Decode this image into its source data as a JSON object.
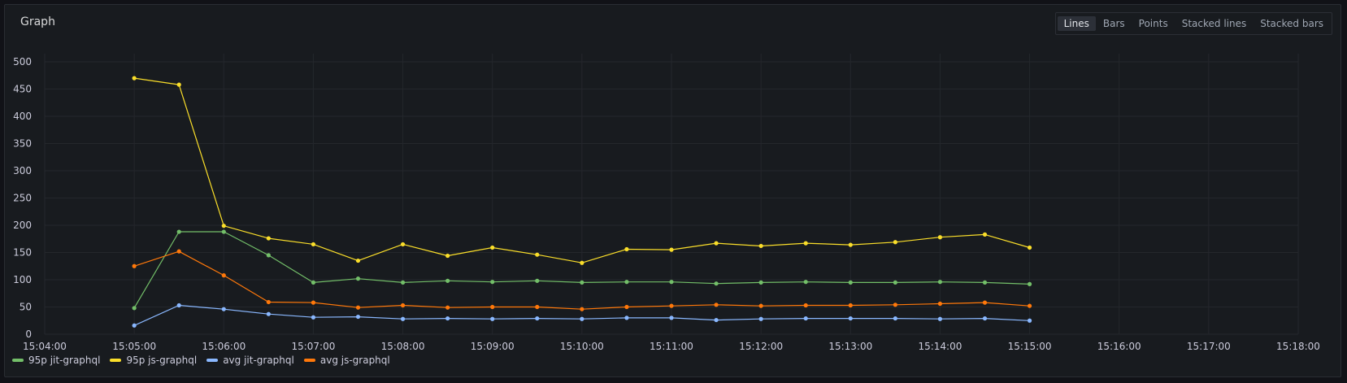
{
  "panel": {
    "title": "Graph",
    "view_modes": [
      "Lines",
      "Bars",
      "Points",
      "Stacked lines",
      "Stacked bars"
    ],
    "active_view": "Lines"
  },
  "colors": {
    "95p jit-graphql": "#73bf69",
    "95p js-graphql": "#fade2a",
    "avg jit-graphql": "#8ab8ff",
    "avg js-graphql": "#ff780a"
  },
  "chart_data": {
    "type": "line",
    "title": "Graph",
    "xlabel": "",
    "ylabel": "",
    "ylim": [
      0,
      500
    ],
    "yticks": [
      0,
      50,
      100,
      150,
      200,
      250,
      300,
      350,
      400,
      450,
      500
    ],
    "xticks": [
      "15:04:00",
      "15:05:00",
      "15:06:00",
      "15:07:00",
      "15:08:00",
      "15:09:00",
      "15:10:00",
      "15:11:00",
      "15:12:00",
      "15:13:00",
      "15:14:00",
      "15:15:00",
      "15:16:00",
      "15:17:00",
      "15:18:00"
    ],
    "xlim": [
      "15:04:00",
      "15:18:00"
    ],
    "grid": true,
    "legend_position": "bottom-left",
    "x": [
      "15:05:00",
      "15:05:30",
      "15:06:00",
      "15:06:30",
      "15:07:00",
      "15:07:30",
      "15:08:00",
      "15:08:30",
      "15:09:00",
      "15:09:30",
      "15:10:00",
      "15:10:30",
      "15:11:00",
      "15:11:30",
      "15:12:00",
      "15:12:30",
      "15:13:00",
      "15:13:30",
      "15:14:00",
      "15:14:30",
      "15:15:00"
    ],
    "series": [
      {
        "name": "95p jit-graphql",
        "values": [
          48,
          188,
          188,
          145,
          95,
          102,
          95,
          98,
          96,
          98,
          95,
          96,
          96,
          93,
          95,
          96,
          95,
          95,
          96,
          95,
          92
        ]
      },
      {
        "name": "95p js-graphql",
        "values": [
          470,
          458,
          199,
          176,
          165,
          135,
          165,
          144,
          159,
          146,
          131,
          156,
          155,
          167,
          162,
          167,
          164,
          169,
          178,
          183,
          159
        ]
      },
      {
        "name": "avg jit-graphql",
        "values": [
          16,
          53,
          46,
          37,
          31,
          32,
          28,
          29,
          28,
          29,
          28,
          30,
          30,
          26,
          28,
          29,
          29,
          29,
          28,
          29,
          25
        ]
      },
      {
        "name": "avg js-graphql",
        "values": [
          125,
          152,
          108,
          59,
          58,
          49,
          53,
          49,
          50,
          50,
          46,
          50,
          52,
          54,
          52,
          53,
          53,
          54,
          56,
          58,
          52
        ]
      }
    ]
  }
}
